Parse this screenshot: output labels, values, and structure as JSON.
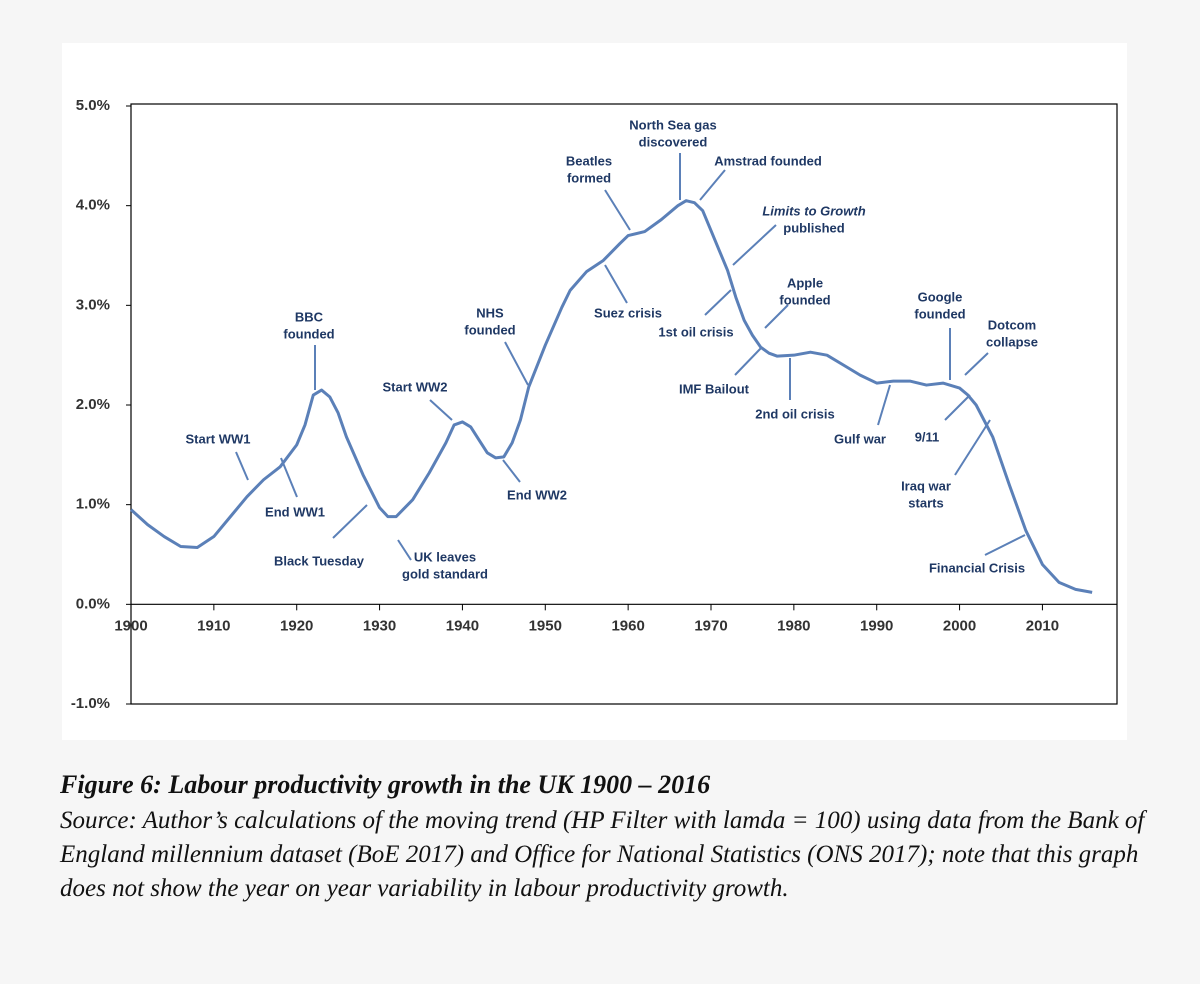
{
  "chart_data": {
    "type": "line",
    "xlim": [
      1900,
      2019
    ],
    "xticks": [
      1900,
      1910,
      1920,
      1930,
      1940,
      1950,
      1960,
      1970,
      1980,
      1990,
      2000,
      2010
    ],
    "ylim": [
      -1,
      5
    ],
    "yticks": [
      {
        "value": -1,
        "label": "-1.0%"
      },
      {
        "value": 0,
        "label": "0.0%"
      },
      {
        "value": 1,
        "label": "1.0%"
      },
      {
        "value": 2,
        "label": "2.0%"
      },
      {
        "value": 3,
        "label": "3.0%"
      },
      {
        "value": 4,
        "label": "4.0%"
      },
      {
        "value": 5,
        "label": "5.0%"
      }
    ],
    "grid": false,
    "series": [
      {
        "color": "#5b80b8",
        "x": [
          1900,
          1902,
          1904,
          1906,
          1908,
          1910,
          1912,
          1914,
          1916,
          1918,
          1920,
          1921,
          1922,
          1923,
          1924,
          1925,
          1926,
          1928,
          1930,
          1931,
          1932,
          1934,
          1936,
          1938,
          1939,
          1940,
          1941,
          1942,
          1943,
          1944,
          1945,
          1946,
          1947,
          1948,
          1950,
          1952,
          1953,
          1955,
          1957,
          1959,
          1960,
          1962,
          1964,
          1966,
          1967,
          1968,
          1969,
          1970,
          1971,
          1972,
          1973,
          1974,
          1975,
          1976,
          1977,
          1978,
          1980,
          1982,
          1984,
          1986,
          1988,
          1990,
          1992,
          1994,
          1996,
          1998,
          2000,
          2001,
          2002,
          2004,
          2006,
          2008,
          2010,
          2012,
          2014,
          2016
        ],
        "values": [
          0.95,
          0.8,
          0.68,
          0.58,
          0.57,
          0.68,
          0.88,
          1.08,
          1.25,
          1.38,
          1.6,
          1.8,
          2.1,
          2.15,
          2.08,
          1.92,
          1.68,
          1.3,
          0.97,
          0.88,
          0.88,
          1.05,
          1.32,
          1.62,
          1.8,
          1.83,
          1.78,
          1.65,
          1.52,
          1.47,
          1.48,
          1.62,
          1.85,
          2.18,
          2.6,
          2.98,
          3.15,
          3.34,
          3.45,
          3.62,
          3.7,
          3.74,
          3.86,
          4.0,
          4.05,
          4.03,
          3.95,
          3.75,
          3.55,
          3.35,
          3.08,
          2.85,
          2.7,
          2.58,
          2.52,
          2.49,
          2.5,
          2.53,
          2.5,
          2.4,
          2.3,
          2.22,
          2.24,
          2.24,
          2.2,
          2.22,
          2.17,
          2.1,
          2.0,
          1.68,
          1.2,
          0.74,
          0.4,
          0.22,
          0.15,
          0.12
        ]
      }
    ],
    "annotations": [
      {
        "lines": [
          "BBC",
          "founded"
        ]
      },
      {
        "lines": [
          "Start WW1"
        ]
      },
      {
        "lines": [
          "End WW1"
        ]
      },
      {
        "lines": [
          "Black Tuesday"
        ]
      },
      {
        "lines": [
          "UK leaves",
          "gold standard"
        ]
      },
      {
        "lines": [
          "Start WW2"
        ]
      },
      {
        "lines": [
          "NHS",
          "founded"
        ]
      },
      {
        "lines": [
          "End WW2"
        ]
      },
      {
        "lines": [
          "Beatles",
          "formed"
        ]
      },
      {
        "lines": [
          "Suez crisis"
        ]
      },
      {
        "lines": [
          "North Sea gas",
          "discovered"
        ]
      },
      {
        "lines": [
          "Amstrad founded"
        ]
      },
      {
        "lines": [
          "Limits to Growth",
          "published"
        ]
      },
      {
        "lines": [
          "1st oil crisis"
        ]
      },
      {
        "lines": [
          "Apple",
          "founded"
        ]
      },
      {
        "lines": [
          "IMF Bailout"
        ]
      },
      {
        "lines": [
          "2nd oil crisis"
        ]
      },
      {
        "lines": [
          "Gulf war"
        ]
      },
      {
        "lines": [
          "Google",
          "founded"
        ]
      },
      {
        "lines": [
          "Dotcom",
          "collapse"
        ]
      },
      {
        "lines": [
          "9/11"
        ]
      },
      {
        "lines": [
          "Iraq war",
          "starts"
        ]
      },
      {
        "lines": [
          "Financial Crisis"
        ]
      }
    ]
  },
  "caption": {
    "title": "Figure 6: Labour productivity growth in the UK 1900 – 2016",
    "source": "Source: Author’s calculations of the moving trend (HP Filter with lamda = 100) using data from the Bank of England millennium dataset (BoE 2017) and Office for National Statistics (ONS 2017); note that this graph does not show the year on year variability in labour productivity growth."
  }
}
